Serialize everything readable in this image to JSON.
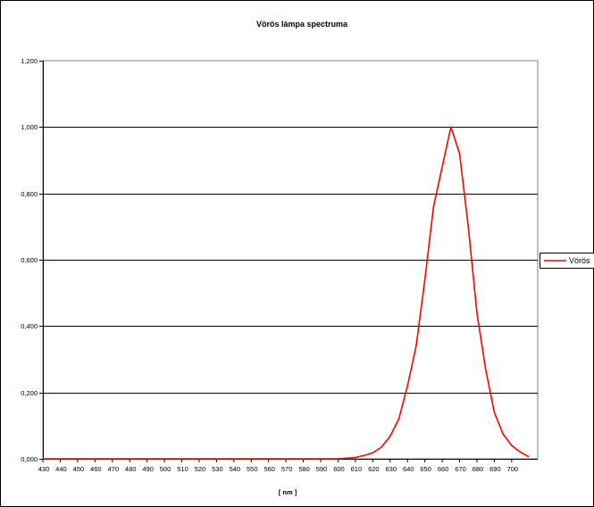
{
  "chart_data": {
    "type": "line",
    "title": "Vörös lámpa spectruma",
    "xlabel": "[ nm ]",
    "ylabel": "",
    "xlim": [
      430,
      715
    ],
    "ylim": [
      0,
      1.2
    ],
    "x_ticks": [
      430,
      440,
      450,
      460,
      470,
      480,
      490,
      500,
      510,
      520,
      530,
      540,
      550,
      560,
      570,
      580,
      590,
      600,
      610,
      620,
      630,
      640,
      650,
      660,
      670,
      680,
      690,
      700
    ],
    "x_tick_labels": [
      "430",
      "440",
      "450",
      "460",
      "470",
      "480",
      "490",
      "500",
      "510",
      "520",
      "530",
      "540",
      "550",
      "560",
      "570",
      "580",
      "590",
      "600",
      "610",
      "620",
      "630",
      "640",
      "650",
      "660",
      "670",
      "680",
      "690",
      "700"
    ],
    "y_ticks": [
      0,
      0.2,
      0.4,
      0.6,
      0.8,
      1.0,
      1.2
    ],
    "y_tick_labels": [
      "0,000",
      "0,200",
      "0,400",
      "0,600",
      "0,800",
      "1,000",
      "1,200"
    ],
    "grid": "horizontal",
    "legend_position": "right",
    "series": [
      {
        "name": "Vörös",
        "color": "#ff0000",
        "x": [
          430,
          435,
          440,
          445,
          450,
          455,
          460,
          465,
          470,
          475,
          480,
          485,
          490,
          495,
          500,
          505,
          510,
          515,
          520,
          525,
          530,
          535,
          540,
          545,
          550,
          555,
          560,
          565,
          570,
          575,
          580,
          585,
          590,
          595,
          600,
          605,
          610,
          615,
          620,
          625,
          630,
          635,
          640,
          645,
          650,
          655,
          660,
          665,
          670,
          675,
          680,
          685,
          690,
          695,
          700,
          705,
          710
        ],
        "values": [
          0,
          0,
          0,
          0,
          0,
          0,
          0,
          0,
          0,
          0,
          0,
          0,
          0,
          0,
          0,
          0,
          0,
          0,
          0,
          0,
          0,
          0,
          0,
          0,
          0,
          0,
          0,
          0,
          0,
          0,
          0,
          0,
          0,
          0,
          0,
          0.002,
          0.004,
          0.01,
          0.018,
          0.035,
          0.068,
          0.12,
          0.22,
          0.34,
          0.54,
          0.76,
          0.88,
          1.0,
          0.92,
          0.7,
          0.44,
          0.27,
          0.14,
          0.075,
          0.04,
          0.02,
          0.006
        ]
      }
    ]
  }
}
